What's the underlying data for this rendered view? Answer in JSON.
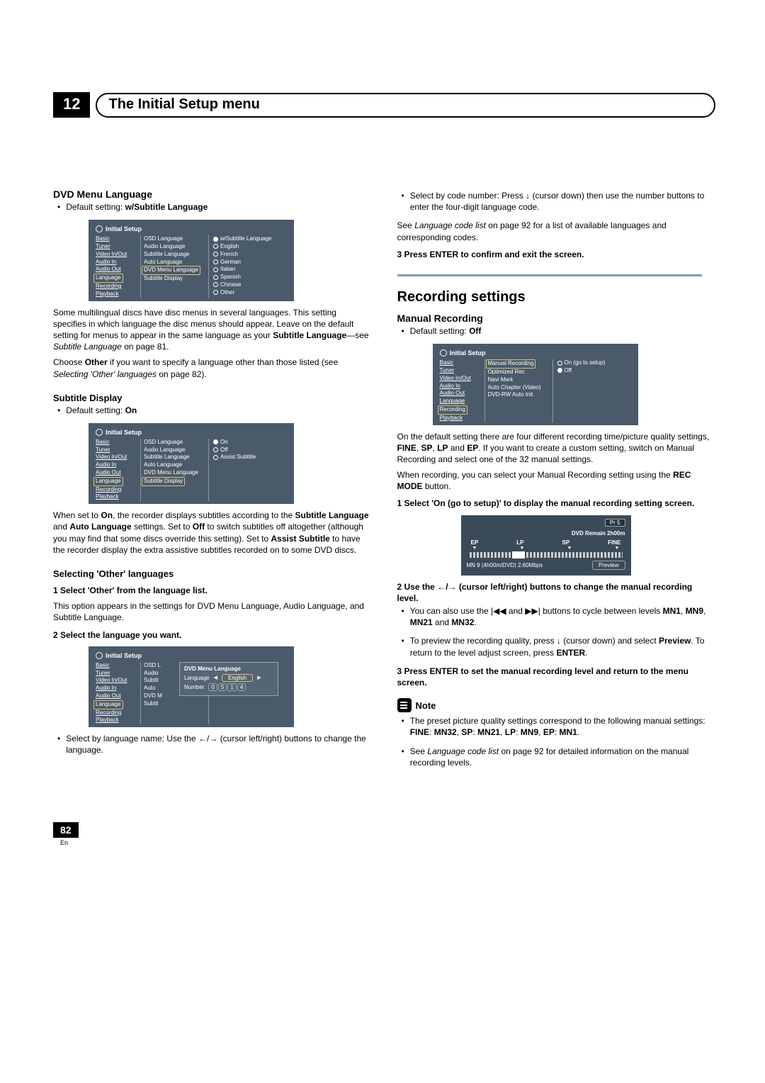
{
  "chapter": {
    "num": "12",
    "title": "The Initial Setup menu"
  },
  "page_number": "82",
  "page_lang": "En",
  "left": {
    "dvd_menu_lang": {
      "heading": "DVD Menu Language",
      "default_label": "Default setting: ",
      "default_value": "w/Subtitle Language",
      "ss": {
        "title": "Initial Setup",
        "nav": [
          "Basic",
          "Tuner",
          "Video In/Out",
          "Audio In",
          "Audio Out",
          "Language",
          "Recording",
          "Playback"
        ],
        "nav_selected": "Language",
        "mid": [
          "OSD Language",
          "Audio Language",
          "Subtitle Language",
          "Auto Language",
          "DVD Menu Language",
          "Subtitle Display"
        ],
        "mid_selected": "DVD Menu Language",
        "right": [
          "w/Subtitle Language",
          "English",
          "French",
          "German",
          "Italian",
          "Spanish",
          "Chinese",
          "Other"
        ],
        "right_selected": "w/Subtitle Language"
      },
      "para1a": "Some multilingual discs have disc menus in several languages. This setting specifies in which language the disc menus should appear. Leave on the default setting for menus to appear in the same language as your ",
      "para1b": "Subtitle Language",
      "para1c": "—see ",
      "para1d": "Subtitle Language",
      "para1e": " on page 81.",
      "para2a": "Choose ",
      "para2b": "Other",
      "para2c": " if you want to specify a language other than those listed (see ",
      "para2d": "Selecting 'Other' languages",
      "para2e": " on page 82)."
    },
    "subtitle_display": {
      "heading": "Subtitle Display",
      "default_label": "Default setting: ",
      "default_value": "On",
      "ss": {
        "title": "Initial Setup",
        "nav": [
          "Basic",
          "Tuner",
          "Video In/Out",
          "Audio In",
          "Audio Out",
          "Language",
          "Recording",
          "Playback"
        ],
        "nav_selected": "Language",
        "mid": [
          "OSD Language",
          "Audio Language",
          "Subtitle Language",
          "Auto Language",
          "DVD Menu Language",
          "Subtitle Display"
        ],
        "mid_selected": "Subtitle Display",
        "right": [
          "On",
          "Off",
          "Assist Subtitle"
        ],
        "right_selected": "On"
      },
      "para_parts": [
        "When set to ",
        "On",
        ", the recorder displays subtitles according to the ",
        "Subtitle Language",
        " and ",
        "Auto Language",
        " settings. Set to ",
        "Off",
        " to switch subtitles off altogether (although you may find that some discs override this setting). Set to ",
        "Assist Subtitle",
        " to have the recorder display the extra assistive subtitles recorded on to some DVD discs."
      ]
    },
    "other_lang": {
      "heading": "Selecting 'Other' languages",
      "step1": "1    Select 'Other' from the language list.",
      "step1_sub": "This option appears in the settings for DVD Menu Language, Audio Language, and Subtitle Language.",
      "step2": "2    Select the language you want.",
      "ss": {
        "title": "Initial Setup",
        "nav": [
          "Basic",
          "Tuner",
          "Video In/Out",
          "Audio In",
          "Audio Out",
          "Language",
          "Recording",
          "Playback"
        ],
        "nav_selected": "Language",
        "mid": [
          "OSD L",
          "Audio",
          "Subtit",
          "Auto",
          "DVD M",
          "Subtit"
        ],
        "popup_title": "DVD Menu Language",
        "popup_lang_label": "Language",
        "popup_lang_val": "English",
        "popup_num_label": "Number",
        "popup_digits": [
          "0",
          "5",
          "1",
          "4"
        ]
      },
      "b1a": "Select by language name: Use the ",
      "b1b": " (cursor left/right) buttons to change the language."
    }
  },
  "right": {
    "cont_bullet_a": "Select by code number: Press ",
    "cont_bullet_b": " (cursor down) then use the number buttons to enter the four-digit language code.",
    "see_a": "See ",
    "see_b": "Language code list",
    "see_c": " on page 92 for a list of available languages and corresponding codes.",
    "step3": "3    Press ENTER to confirm and exit the screen.",
    "rec_heading": "Recording settings",
    "manual": {
      "heading": "Manual Recording",
      "default_label": "Default setting: ",
      "default_value": "Off",
      "ss": {
        "title": "Initial Setup",
        "nav": [
          "Basic",
          "Tuner",
          "Video In/Out",
          "Audio In",
          "Audio Out",
          "Language",
          "Recording",
          "Playback"
        ],
        "nav_selected": "Recording",
        "mid": [
          "Manual Recording",
          "Optimized Rec",
          "Navi Mark",
          "Auto Chapter (Video)",
          "DVD-RW Auto Init."
        ],
        "mid_selected": "Manual Recording",
        "right": [
          "On (go to setup)",
          "Off"
        ],
        "right_selected": "Off"
      },
      "p1_parts": [
        "On the default setting there are four different recording time/picture quality settings, ",
        "FINE",
        ", ",
        "SP",
        ", ",
        "LP",
        " and ",
        "EP",
        ". If you want to create a custom setting, switch on Manual Recording and select one of the 32 manual settings."
      ],
      "p2_parts": [
        "When recording, you can select your Manual Recording setting using the ",
        "REC MODE",
        " button."
      ],
      "step1": "1    Select 'On (go to setup)' to display the manual recording setting screen.",
      "rec": {
        "pr": "Pr 5",
        "remain": "DVD Remain   2h00m",
        "labels": [
          "EP",
          "LP",
          "SP",
          "FINE"
        ],
        "bottom_left": "MN 9 (4h00m/DVD)   2.60Mbps",
        "preview": "Preview"
      },
      "step2_parts": [
        "2    Use the  ",
        "/",
        " (cursor left/right) buttons to change the manual recording level."
      ],
      "b1_parts": [
        "You can also use the ",
        " and ",
        " buttons to cycle between levels ",
        "MN1",
        ", ",
        "MN9",
        ", ",
        "MN21",
        " and ",
        "MN32",
        "."
      ],
      "b2_parts": [
        "To preview the recording quality, press ",
        " (cursor down) and select ",
        "Preview",
        ". To return to the level adjust screen, press ",
        "ENTER",
        "."
      ],
      "step3": "3    Press ENTER to set the manual recording level and return to the menu screen.",
      "note_label": "Note",
      "n1_parts": [
        "The preset picture quality settings correspond to the following manual settings: ",
        "FINE",
        ": ",
        "MN32",
        ", ",
        "SP",
        ": ",
        "MN21",
        ", ",
        "LP",
        ": ",
        "MN9",
        ", ",
        "EP",
        ": ",
        "MN1",
        "."
      ],
      "n2_parts": [
        "See ",
        "Language code list",
        " on page 92 for detailed information on the manual recording levels."
      ]
    }
  },
  "colors": {
    "teal": "#7aa0a8",
    "screenshot_bg": "#4a5a6a",
    "highlight": "#e6c060"
  }
}
